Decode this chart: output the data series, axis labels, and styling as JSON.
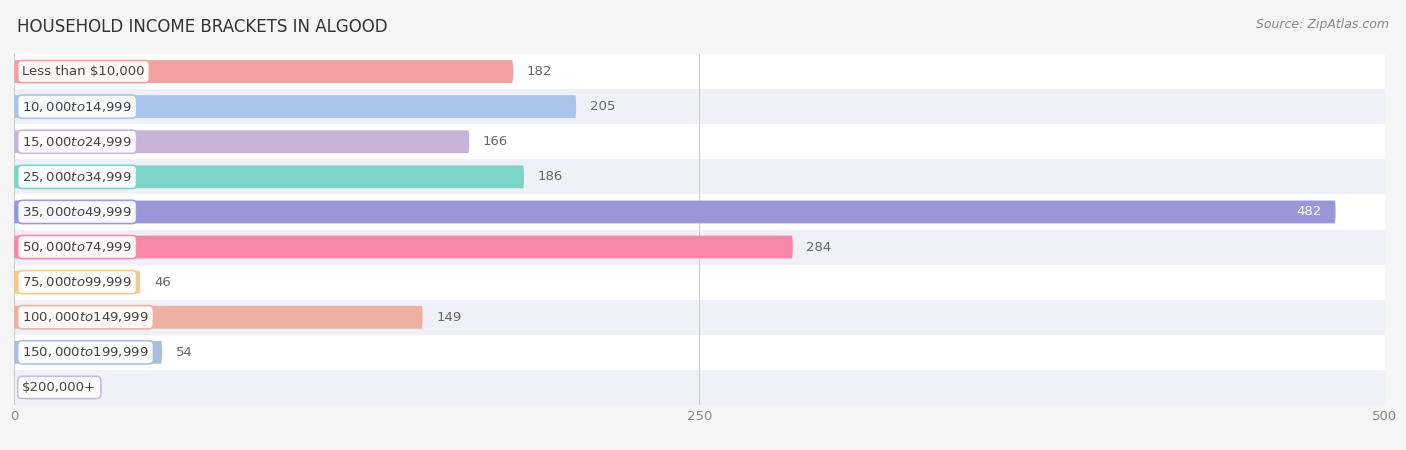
{
  "title": "HOUSEHOLD INCOME BRACKETS IN ALGOOD",
  "source": "Source: ZipAtlas.com",
  "categories": [
    "Less than $10,000",
    "$10,000 to $14,999",
    "$15,000 to $24,999",
    "$25,000 to $34,999",
    "$35,000 to $49,999",
    "$50,000 to $74,999",
    "$75,000 to $99,999",
    "$100,000 to $149,999",
    "$150,000 to $199,999",
    "$200,000+"
  ],
  "values": [
    182,
    205,
    166,
    186,
    482,
    284,
    46,
    149,
    54,
    0
  ],
  "bar_colors": [
    "#f4a0a0",
    "#a8c4e8",
    "#c8b4d8",
    "#7dd4c8",
    "#9898d8",
    "#f888a8",
    "#f8c888",
    "#f0b0a0",
    "#a8c0e0",
    "#c8b8d8"
  ],
  "row_bg_even": "#ffffff",
  "row_bg_odd": "#f0f0f8",
  "xlim": [
    0,
    500
  ],
  "xticks": [
    0,
    250,
    500
  ],
  "background_color": "#f5f5f5",
  "title_fontsize": 12,
  "source_fontsize": 9,
  "label_fontsize": 9.5,
  "value_fontsize": 9.5,
  "bar_height": 0.65,
  "figsize": [
    14.06,
    4.5
  ],
  "dpi": 100
}
